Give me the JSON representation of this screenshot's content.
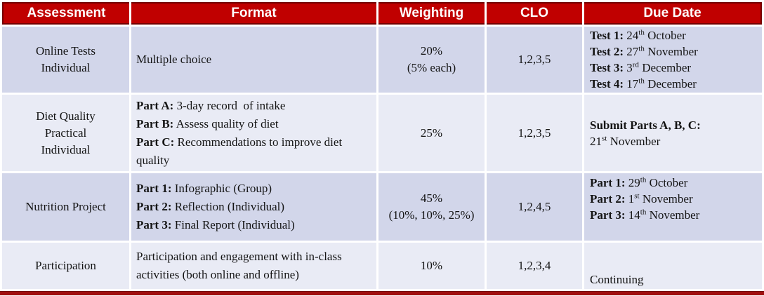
{
  "colors": {
    "header_bg": "#c00000",
    "header_border": "#740000",
    "header_text": "#ffffff",
    "row_odd_bg": "#d2d6ea",
    "row_even_bg": "#e9ebf5",
    "body_text": "#141414",
    "bottom_bar": "#a00f0f"
  },
  "table": {
    "columns": [
      "Assessment",
      "Format",
      "Weighting",
      "CLO",
      "Due Date"
    ],
    "rows": [
      {
        "assessment": [
          "Online Tests",
          "Individual"
        ],
        "format": [
          [
            {
              "t": "Multiple choice"
            }
          ]
        ],
        "weighting": [
          "20%",
          "(5% each)"
        ],
        "clo": "1,2,3,5",
        "due": [
          [
            {
              "t": "Test 1:",
              "b": 1
            },
            {
              "t": " 24"
            },
            {
              "t": "th",
              "sup": 1
            },
            {
              "t": " October"
            }
          ],
          [
            {
              "t": "Test 2:",
              "b": 1
            },
            {
              "t": " 27"
            },
            {
              "t": "th",
              "sup": 1
            },
            {
              "t": " November"
            }
          ],
          [
            {
              "t": "Test 3:",
              "b": 1
            },
            {
              "t": " 3"
            },
            {
              "t": "rd",
              "sup": 1
            },
            {
              "t": " December"
            }
          ],
          [
            {
              "t": "Test 4:",
              "b": 1
            },
            {
              "t": " 17"
            },
            {
              "t": "th",
              "sup": 1
            },
            {
              "t": " December"
            }
          ]
        ]
      },
      {
        "assessment": [
          "Diet Quality",
          "Practical",
          "Individual"
        ],
        "format": [
          [
            {
              "t": "Part A:",
              "b": 1
            },
            {
              "t": " 3-day record  of intake"
            }
          ],
          [
            {
              "t": "Part B:",
              "b": 1
            },
            {
              "t": " Assess quality of diet"
            }
          ],
          [
            {
              "t": "Part C:",
              "b": 1
            },
            {
              "t": " Recommendations to improve diet quality"
            }
          ]
        ],
        "weighting": [
          "25%"
        ],
        "clo": "1,2,3,5",
        "due": [
          [
            {
              "t": "Submit Parts A, B, C:",
              "b": 1
            }
          ],
          [
            {
              "t": "21"
            },
            {
              "t": "st",
              "sup": 1
            },
            {
              "t": " November"
            }
          ]
        ]
      },
      {
        "assessment": [
          "Nutrition Project"
        ],
        "format": [
          [
            {
              "t": "Part 1:",
              "b": 1
            },
            {
              "t": " Infographic (Group)"
            }
          ],
          [
            {
              "t": "Part 2:",
              "b": 1
            },
            {
              "t": " Reflection (Individual)"
            }
          ],
          [
            {
              "t": "Part 3:",
              "b": 1
            },
            {
              "t": " Final Report (Individual)"
            }
          ]
        ],
        "weighting": [
          "45%",
          "(10%, 10%, 25%)"
        ],
        "clo": "1,2,4,5",
        "due": [
          [
            {
              "t": "Part 1:",
              "b": 1
            },
            {
              "t": " 29"
            },
            {
              "t": "th",
              "sup": 1
            },
            {
              "t": " October"
            }
          ],
          [
            {
              "t": "Part 2:",
              "b": 1
            },
            {
              "t": " 1"
            },
            {
              "t": "st",
              "sup": 1
            },
            {
              "t": " November"
            }
          ],
          [
            {
              "t": "Part 3:",
              "b": 1
            },
            {
              "t": " 14"
            },
            {
              "t": "th",
              "sup": 1
            },
            {
              "t": " November"
            }
          ]
        ]
      },
      {
        "assessment": [
          "Participation"
        ],
        "format": [
          [
            {
              "t": "Participation and engagement with in-class activities (both online and offline)"
            }
          ]
        ],
        "weighting": [
          "10%"
        ],
        "clo": "1,2,3,4",
        "due": [
          [
            {
              "t": "Continuing"
            }
          ]
        ]
      }
    ]
  }
}
